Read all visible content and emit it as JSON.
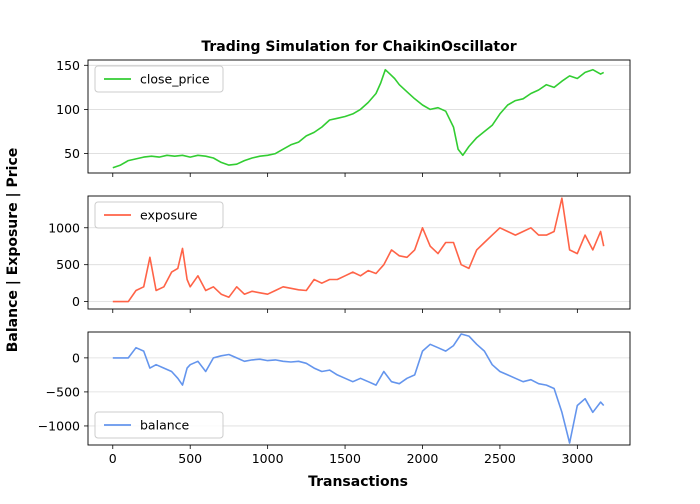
{
  "chart_data": {
    "type": "line",
    "title": "Trading Simulation for ChaikinOscillator",
    "xlabel": "Transactions",
    "ylabel": "Balance | Exposure | Price",
    "xlim": [
      -160,
      3340
    ],
    "xticks": [
      0,
      500,
      1000,
      1500,
      2000,
      2500,
      3000
    ],
    "grid": "horizontal",
    "panels": [
      {
        "series_name": "close_price",
        "color": "#32CD32",
        "legend_position": "upper-left",
        "ylim": [
          28,
          156
        ],
        "yticks": [
          50,
          100,
          150
        ],
        "x": [
          0,
          50,
          100,
          150,
          200,
          250,
          300,
          350,
          400,
          450,
          500,
          550,
          600,
          650,
          700,
          750,
          800,
          850,
          900,
          950,
          1000,
          1050,
          1100,
          1150,
          1200,
          1250,
          1300,
          1350,
          1400,
          1450,
          1500,
          1550,
          1600,
          1650,
          1700,
          1730,
          1760,
          1790,
          1820,
          1850,
          1900,
          1950,
          2000,
          2050,
          2100,
          2150,
          2200,
          2230,
          2260,
          2300,
          2350,
          2400,
          2450,
          2500,
          2550,
          2600,
          2650,
          2700,
          2750,
          2800,
          2850,
          2900,
          2950,
          3000,
          3050,
          3100,
          3150,
          3170
        ],
        "values": [
          34,
          37,
          42,
          44,
          46,
          47,
          46,
          48,
          47,
          48,
          46,
          48,
          47,
          45,
          40,
          37,
          38,
          42,
          45,
          47,
          48,
          50,
          55,
          60,
          63,
          70,
          74,
          80,
          88,
          90,
          92,
          95,
          100,
          108,
          118,
          130,
          145,
          140,
          135,
          128,
          120,
          112,
          105,
          100,
          102,
          98,
          80,
          55,
          48,
          58,
          68,
          75,
          82,
          95,
          105,
          110,
          112,
          118,
          122,
          128,
          125,
          132,
          138,
          135,
          142,
          145,
          140,
          142
        ]
      },
      {
        "series_name": "exposure",
        "color": "#FF6347",
        "legend_position": "upper-left",
        "ylim": [
          -100,
          1430
        ],
        "yticks": [
          0,
          500,
          1000
        ],
        "x": [
          0,
          100,
          150,
          200,
          240,
          280,
          330,
          380,
          420,
          450,
          480,
          500,
          550,
          600,
          650,
          700,
          750,
          800,
          850,
          900,
          950,
          1000,
          1050,
          1100,
          1150,
          1200,
          1250,
          1300,
          1350,
          1400,
          1450,
          1500,
          1550,
          1600,
          1650,
          1700,
          1750,
          1800,
          1850,
          1900,
          1950,
          2000,
          2050,
          2100,
          2150,
          2200,
          2250,
          2300,
          2350,
          2400,
          2450,
          2500,
          2550,
          2600,
          2650,
          2700,
          2750,
          2800,
          2850,
          2900,
          2950,
          3000,
          3050,
          3100,
          3150,
          3170
        ],
        "values": [
          0,
          0,
          150,
          200,
          600,
          150,
          200,
          400,
          450,
          720,
          300,
          200,
          350,
          150,
          200,
          100,
          60,
          200,
          100,
          140,
          120,
          100,
          150,
          200,
          180,
          160,
          150,
          300,
          250,
          300,
          300,
          350,
          400,
          350,
          420,
          380,
          500,
          700,
          620,
          600,
          700,
          1000,
          750,
          650,
          800,
          800,
          500,
          450,
          700,
          800,
          900,
          1000,
          950,
          900,
          950,
          1000,
          900,
          900,
          950,
          1400,
          700,
          650,
          900,
          700,
          950,
          750
        ]
      },
      {
        "series_name": "balance",
        "color": "#6495ED",
        "legend_position": "lower-left",
        "ylim": [
          -1280,
          380
        ],
        "yticks": [
          -1000,
          -500,
          0
        ],
        "x": [
          0,
          100,
          150,
          200,
          240,
          280,
          330,
          380,
          420,
          450,
          480,
          500,
          550,
          600,
          650,
          700,
          750,
          800,
          850,
          900,
          950,
          1000,
          1050,
          1100,
          1150,
          1200,
          1250,
          1300,
          1350,
          1400,
          1450,
          1500,
          1550,
          1600,
          1650,
          1700,
          1750,
          1800,
          1850,
          1900,
          1950,
          2000,
          2050,
          2100,
          2150,
          2200,
          2250,
          2300,
          2350,
          2400,
          2450,
          2500,
          2550,
          2600,
          2650,
          2700,
          2750,
          2800,
          2850,
          2900,
          2950,
          3000,
          3050,
          3100,
          3150,
          3170
        ],
        "values": [
          0,
          0,
          150,
          100,
          -150,
          -100,
          -150,
          -200,
          -300,
          -400,
          -150,
          -100,
          -50,
          -200,
          0,
          30,
          50,
          0,
          -50,
          -30,
          -20,
          -40,
          -30,
          -50,
          -60,
          -50,
          -80,
          -150,
          -200,
          -180,
          -250,
          -300,
          -350,
          -300,
          -350,
          -400,
          -200,
          -350,
          -380,
          -300,
          -250,
          100,
          200,
          150,
          100,
          180,
          350,
          320,
          200,
          100,
          -100,
          -200,
          -250,
          -300,
          -350,
          -320,
          -380,
          -400,
          -450,
          -800,
          -1250,
          -700,
          -600,
          -800,
          -650,
          -700
        ]
      }
    ]
  }
}
